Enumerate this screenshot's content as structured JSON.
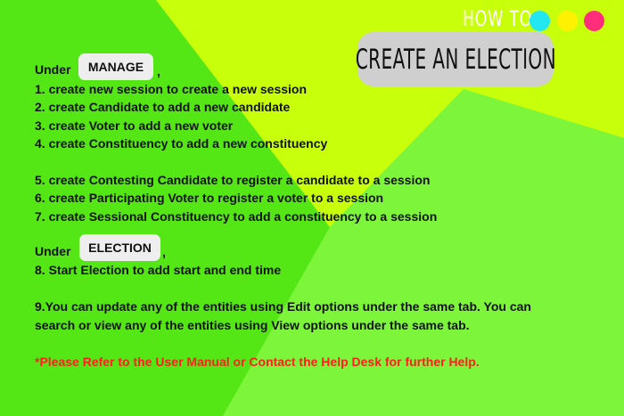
{
  "header": {
    "how_to": "HOW TO",
    "title": "CREATE AN ELECTION",
    "dots": [
      "#22e6f0",
      "#fff200",
      "#ff2d7a"
    ]
  },
  "colors": {
    "bg_main": "#7cf53a",
    "bg_dark": "#55e616",
    "bg_yellow": "#c8ff0a",
    "note": "#ff1f1f"
  },
  "manage_section": {
    "prefix": "Under",
    "tab": "MANAGE",
    "suffix": ",",
    "steps": [
      "1. create new session to create a new session",
      "2. create Candidate to add a new candidate",
      "3. create Voter to add a new voter",
      "4. create Constituency to add a new constituency",
      "5. create Contesting Candidate to register a candidate to a session",
      "6. create Participating Voter to register a voter to a session",
      "7. create Sessional Constituency to add a constituency to a session"
    ]
  },
  "election_section": {
    "prefix": "Under",
    "tab": "ELECTION",
    "suffix": ",",
    "steps": [
      "8. Start Election to add start and end time"
    ]
  },
  "info": {
    "line1": "9.You can update any of the entities using Edit options under the same tab. You can",
    "line2": "search or view any of the entities using View options under the same tab."
  },
  "note": "*Please Refer to the User Manual or Contact the Help Desk for further Help."
}
